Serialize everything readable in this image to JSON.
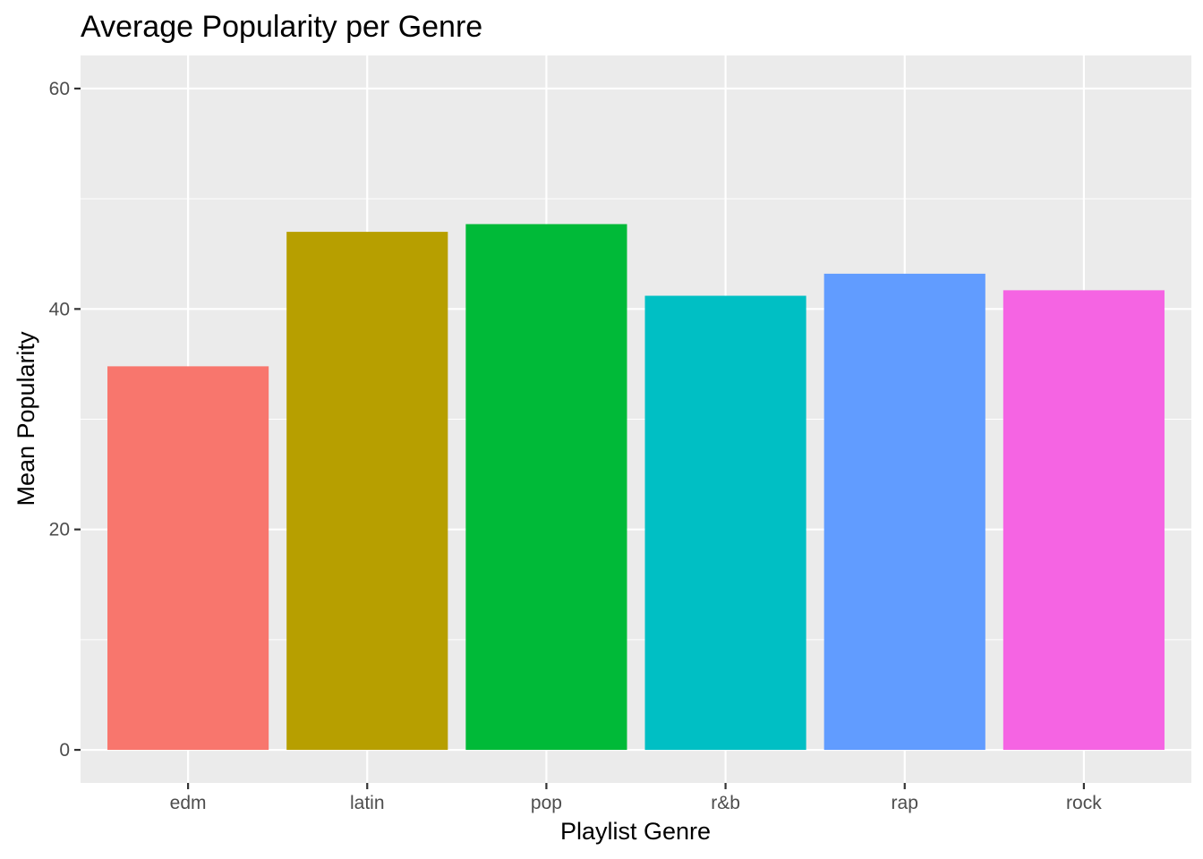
{
  "chart_data": {
    "type": "bar",
    "title": "Average Popularity per Genre",
    "xlabel": "Playlist Genre",
    "ylabel": "Mean Popularity",
    "categories": [
      "edm",
      "latin",
      "pop",
      "r&b",
      "rap",
      "rock"
    ],
    "values": [
      34.8,
      47.0,
      47.7,
      41.2,
      43.2,
      41.7
    ],
    "colors": [
      "#F8766D",
      "#B79F00",
      "#00BA38",
      "#00BFC4",
      "#619CFF",
      "#F564E3"
    ],
    "ylim": [
      -3,
      63
    ],
    "yticks": [
      0,
      20,
      40,
      60
    ],
    "yticks_minor": [
      10,
      30,
      50
    ],
    "grid": true,
    "panel_background": "#EBEBEB",
    "grid_color": "#FFFFFF",
    "legend": "none"
  }
}
